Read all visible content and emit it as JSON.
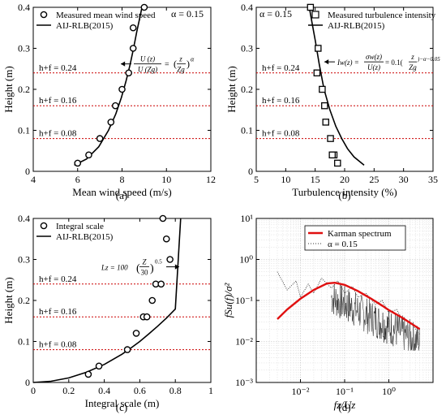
{
  "chart_data": [
    {
      "id": "a",
      "type": "scatter",
      "panel_label": "(a)",
      "xlabel": "Mean wind speed (m/s)",
      "ylabel": "Height (m)",
      "xlim": [
        4,
        12
      ],
      "ylim": [
        0,
        0.4
      ],
      "xticks": [
        4,
        6,
        8,
        10,
        12
      ],
      "yticks": [
        0,
        0.1,
        0.2,
        0.3,
        0.4
      ],
      "xtick_labels": [
        "4",
        "6",
        "8",
        "10",
        "12"
      ],
      "ytick_labels": [
        "0",
        "0.1",
        "0.2",
        "0.3",
        "0.4"
      ],
      "grid": false,
      "legend_position": "top-left",
      "legend": [
        "Measured mean wind speed",
        "AIJ-RLB(2015)"
      ],
      "annotations": [
        "α = 0.15"
      ],
      "formula": {
        "lhs": "U (z)",
        "lhs_den": "U (Zg)",
        "eq": "=",
        "base": "z",
        "base_den": "Zg",
        "exp": "α"
      },
      "hlines": [
        {
          "y": 0.24,
          "label": "h+f = 0.24"
        },
        {
          "y": 0.16,
          "label": "h+f = 0.16"
        },
        {
          "y": 0.08,
          "label": "h+f = 0.08"
        }
      ],
      "series": [
        {
          "name": "Measured mean wind speed",
          "mode": "markers",
          "x": [
            6.0,
            6.5,
            7.0,
            7.5,
            7.7,
            8.0,
            8.3,
            8.5,
            8.5,
            9.0
          ],
          "y": [
            0.02,
            0.04,
            0.08,
            0.12,
            0.16,
            0.2,
            0.24,
            0.3,
            0.35,
            0.4
          ]
        },
        {
          "name": "AIJ-RLB(2015)",
          "mode": "line",
          "x": [
            5.85,
            6.4,
            6.95,
            7.39,
            7.72,
            7.97,
            8.18,
            8.36,
            8.52,
            8.66,
            8.78,
            8.9
          ],
          "y": [
            0.015,
            0.03,
            0.06,
            0.1,
            0.14,
            0.18,
            0.22,
            0.26,
            0.3,
            0.34,
            0.37,
            0.4
          ]
        }
      ]
    },
    {
      "id": "b",
      "type": "scatter",
      "panel_label": "(b)",
      "xlabel": "Turbulence intensity (%)",
      "ylabel": "Height (m)",
      "xlim": [
        5,
        35
      ],
      "ylim": [
        0,
        0.4
      ],
      "xticks": [
        5,
        10,
        15,
        20,
        25,
        30,
        35
      ],
      "yticks": [
        0,
        0.1,
        0.2,
        0.3,
        0.4
      ],
      "xtick_labels": [
        "5",
        "10",
        "15",
        "20",
        "25",
        "30",
        "35"
      ],
      "ytick_labels": [
        "0",
        "0.1",
        "0.2",
        "0.3",
        "0.4"
      ],
      "grid": false,
      "legend_position": "top-right",
      "legend": [
        "Measured turbulence intensity",
        "AIJ-RLB(2015)"
      ],
      "annotations": [
        "α = 0.15"
      ],
      "formula": {
        "lhs": "Iw(z) =",
        "frac_num": "σw(z)",
        "frac_den": "U(z)",
        "mid": "= 0.1(",
        "base": "z",
        "base_den": "Zg",
        "exp": ")−α−0.05"
      },
      "hlines": [
        {
          "y": 0.24,
          "label": "h+f = 0.24"
        },
        {
          "y": 0.16,
          "label": "h+f = 0.16"
        },
        {
          "y": 0.08,
          "label": "h+f = 0.08"
        }
      ],
      "series": [
        {
          "name": "Measured turbulence intensity",
          "mode": "markers",
          "x": [
            14.2,
            15.5,
            15.3,
            16.2,
            16.6,
            16.8,
            17.6,
            18.2,
            17.9,
            18.8
          ],
          "y": [
            0.4,
            0.3,
            0.24,
            0.2,
            0.16,
            0.12,
            0.08,
            0.04,
            0.04,
            0.02
          ]
        },
        {
          "name": "AIJ-RLB(2015)",
          "mode": "line",
          "x": [
            14.0,
            14.5,
            15.0,
            15.7,
            16.5,
            17.5,
            18.5,
            19.5,
            20.5,
            21.6,
            23.3
          ],
          "y": [
            0.4,
            0.36,
            0.32,
            0.26,
            0.2,
            0.15,
            0.11,
            0.08,
            0.055,
            0.035,
            0.015
          ]
        }
      ]
    },
    {
      "id": "c",
      "type": "scatter",
      "panel_label": "(c)",
      "xlabel": "Integral scale (m)",
      "ylabel": "Height (m)",
      "xlim": [
        0,
        1
      ],
      "ylim": [
        0,
        0.4
      ],
      "xticks": [
        0,
        0.2,
        0.4,
        0.6,
        0.8,
        1
      ],
      "yticks": [
        0,
        0.1,
        0.2,
        0.3,
        0.4
      ],
      "xtick_labels": [
        "0",
        "0.2",
        "0.4",
        "0.6",
        "0.8",
        "1"
      ],
      "ytick_labels": [
        "0",
        "0.1",
        "0.2",
        "0.3",
        "0.4"
      ],
      "grid": false,
      "legend_position": "top-left",
      "legend": [
        "Integral scale",
        "AIJ-RLB(2015)"
      ],
      "formula": {
        "lhs": "Lz = 100",
        "base": "Z",
        "base_den": "30",
        "exp": "0.5"
      },
      "hlines": [
        {
          "y": 0.24,
          "label": "h+f = 0.24"
        },
        {
          "y": 0.16,
          "label": "h+f = 0.16"
        },
        {
          "y": 0.08,
          "label": "h+f = 0.08"
        }
      ],
      "series": [
        {
          "name": "Integral scale",
          "mode": "markers",
          "x": [
            0.31,
            0.37,
            0.53,
            0.58,
            0.62,
            0.64,
            0.67,
            0.69,
            0.72,
            0.73,
            0.75,
            0.77
          ],
          "y": [
            0.02,
            0.04,
            0.08,
            0.12,
            0.16,
            0.16,
            0.2,
            0.24,
            0.24,
            0.4,
            0.35,
            0.3
          ]
        },
        {
          "name": "AIJ-RLB(2015)",
          "mode": "line",
          "x": [
            0.0,
            0.1,
            0.2,
            0.3,
            0.4,
            0.5,
            0.55,
            0.6,
            0.65,
            0.7,
            0.75,
            0.8,
            0.83
          ],
          "y": [
            0.0,
            0.003,
            0.011,
            0.025,
            0.044,
            0.069,
            0.084,
            0.1,
            0.118,
            0.137,
            0.157,
            0.179,
            0.4
          ]
        }
      ]
    },
    {
      "id": "d",
      "type": "line",
      "panel_label": "(d)",
      "xlabel": "fz/Uz",
      "ylabel": "fSu(f)/σ²",
      "xscale": "log",
      "yscale": "log",
      "xlim": [
        0.001,
        10
      ],
      "ylim": [
        0.001,
        10
      ],
      "xtick_labels": [
        "10⁻²",
        "10⁻¹",
        "10⁰"
      ],
      "ytick_labels": [
        "10¹",
        "10⁰",
        "10⁻¹",
        "10⁻²",
        "10⁻³"
      ],
      "grid": true,
      "legend_position": "top-right",
      "legend": [
        "Karman spectrum",
        "α = 0.15"
      ],
      "series": [
        {
          "name": "Karman spectrum",
          "mode": "line",
          "x": [
            0.003,
            0.005,
            0.01,
            0.02,
            0.04,
            0.06,
            0.1,
            0.2,
            0.4,
            0.7,
            1,
            2,
            5
          ],
          "y": [
            0.035,
            0.06,
            0.11,
            0.18,
            0.26,
            0.27,
            0.24,
            0.17,
            0.11,
            0.075,
            0.058,
            0.038,
            0.02
          ]
        },
        {
          "name": "α = 0.15",
          "mode": "dotted",
          "x": [
            0.003,
            0.005,
            0.008,
            0.01,
            0.015,
            0.02,
            0.03,
            0.05,
            0.07,
            0.1,
            0.15,
            0.2,
            0.3,
            0.5,
            0.7,
            1,
            1.5,
            2,
            3,
            5
          ],
          "y": [
            0.5,
            0.18,
            0.3,
            0.12,
            0.25,
            0.15,
            0.35,
            0.2,
            0.3,
            0.15,
            0.22,
            0.12,
            0.15,
            0.08,
            0.1,
            0.05,
            0.06,
            0.035,
            0.03,
            0.015
          ]
        }
      ]
    }
  ]
}
